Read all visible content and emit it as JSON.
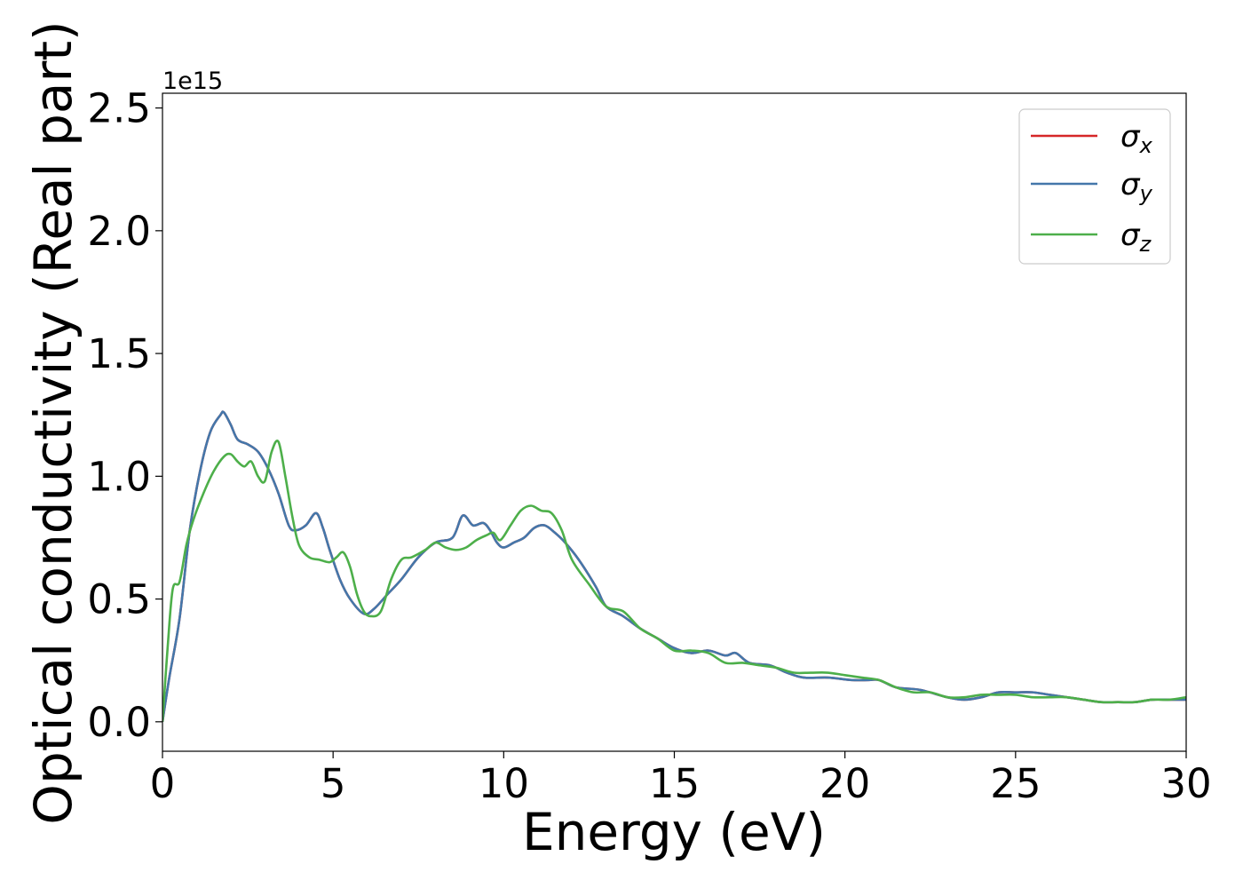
{
  "chart_data": {
    "type": "line",
    "xlabel": "Energy (eV)",
    "ylabel": "Optical conductivity (Real part)",
    "offset_label": "1e15",
    "xlim": [
      0,
      30
    ],
    "ylim": [
      -0.12,
      2.56
    ],
    "xticks": [
      0,
      5,
      10,
      15,
      20,
      25,
      30
    ],
    "xtick_labels": [
      "0",
      "5",
      "10",
      "15",
      "20",
      "25",
      "30"
    ],
    "yticks": [
      0.0,
      0.5,
      1.0,
      1.5,
      2.0,
      2.5
    ],
    "ytick_labels": [
      "0.0",
      "0.5",
      "1.0",
      "1.5",
      "2.0",
      "2.5"
    ],
    "grid": false,
    "legend_position": "top-right",
    "series": [
      {
        "name": "σ",
        "subscript": "x",
        "color": "#d62728",
        "x": [
          0,
          0.2,
          0.5,
          0.8,
          1.1,
          1.4,
          1.7,
          1.8,
          2.0,
          2.2,
          2.5,
          2.8,
          3.1,
          3.4,
          3.7,
          3.9,
          4.2,
          4.5,
          4.7,
          4.9,
          5.2,
          5.5,
          5.9,
          6.2,
          6.6,
          7.0,
          7.5,
          8.0,
          8.5,
          8.8,
          9.1,
          9.4,
          9.6,
          9.8,
          10.0,
          10.3,
          10.6,
          10.9,
          11.2,
          11.5,
          11.8,
          12.2,
          12.7,
          13.0,
          13.5,
          14.0,
          14.5,
          15.0,
          15.5,
          16.0,
          16.5,
          16.8,
          17.2,
          17.8,
          18.3,
          18.8,
          19.5,
          20.2,
          20.7,
          21.0,
          21.5,
          22.2,
          23.0,
          23.5,
          24.0,
          24.5,
          25.0,
          25.5,
          26.0,
          26.5,
          27.0,
          27.5,
          28.0,
          28.5,
          29.0,
          29.5,
          30.0
        ],
        "y": [
          0.0,
          0.18,
          0.42,
          0.78,
          1.02,
          1.18,
          1.25,
          1.26,
          1.21,
          1.15,
          1.13,
          1.1,
          1.03,
          0.93,
          0.8,
          0.78,
          0.8,
          0.85,
          0.79,
          0.7,
          0.58,
          0.5,
          0.44,
          0.46,
          0.52,
          0.58,
          0.67,
          0.73,
          0.75,
          0.84,
          0.8,
          0.81,
          0.78,
          0.73,
          0.71,
          0.73,
          0.75,
          0.79,
          0.8,
          0.77,
          0.73,
          0.66,
          0.55,
          0.47,
          0.43,
          0.38,
          0.34,
          0.3,
          0.28,
          0.29,
          0.27,
          0.28,
          0.24,
          0.23,
          0.2,
          0.18,
          0.18,
          0.17,
          0.17,
          0.17,
          0.14,
          0.13,
          0.1,
          0.09,
          0.1,
          0.12,
          0.12,
          0.12,
          0.11,
          0.1,
          0.09,
          0.08,
          0.08,
          0.08,
          0.09,
          0.09,
          0.09
        ]
      },
      {
        "name": "σ",
        "subscript": "y",
        "color": "#4477aa",
        "x": [
          0,
          0.2,
          0.5,
          0.8,
          1.1,
          1.4,
          1.7,
          1.8,
          2.0,
          2.2,
          2.5,
          2.8,
          3.1,
          3.4,
          3.7,
          3.9,
          4.2,
          4.5,
          4.7,
          4.9,
          5.2,
          5.5,
          5.9,
          6.2,
          6.6,
          7.0,
          7.5,
          8.0,
          8.5,
          8.8,
          9.1,
          9.4,
          9.6,
          9.8,
          10.0,
          10.3,
          10.6,
          10.9,
          11.2,
          11.5,
          11.8,
          12.2,
          12.7,
          13.0,
          13.5,
          14.0,
          14.5,
          15.0,
          15.5,
          16.0,
          16.5,
          16.8,
          17.2,
          17.8,
          18.3,
          18.8,
          19.5,
          20.2,
          20.7,
          21.0,
          21.5,
          22.2,
          23.0,
          23.5,
          24.0,
          24.5,
          25.0,
          25.5,
          26.0,
          26.5,
          27.0,
          27.5,
          28.0,
          28.5,
          29.0,
          29.5,
          30.0
        ],
        "y": [
          0.0,
          0.18,
          0.42,
          0.78,
          1.02,
          1.18,
          1.25,
          1.26,
          1.21,
          1.15,
          1.13,
          1.1,
          1.03,
          0.93,
          0.8,
          0.78,
          0.8,
          0.85,
          0.79,
          0.7,
          0.58,
          0.5,
          0.44,
          0.46,
          0.52,
          0.58,
          0.67,
          0.73,
          0.75,
          0.84,
          0.8,
          0.81,
          0.78,
          0.73,
          0.71,
          0.73,
          0.75,
          0.79,
          0.8,
          0.77,
          0.73,
          0.66,
          0.55,
          0.47,
          0.43,
          0.38,
          0.34,
          0.3,
          0.28,
          0.29,
          0.27,
          0.28,
          0.24,
          0.23,
          0.2,
          0.18,
          0.18,
          0.17,
          0.17,
          0.17,
          0.14,
          0.13,
          0.1,
          0.09,
          0.1,
          0.12,
          0.12,
          0.12,
          0.11,
          0.1,
          0.09,
          0.08,
          0.08,
          0.08,
          0.09,
          0.09,
          0.09
        ]
      },
      {
        "name": "σ",
        "subscript": "z",
        "color": "#4daf4a",
        "x": [
          0,
          0.15,
          0.3,
          0.5,
          0.7,
          0.9,
          1.2,
          1.5,
          1.8,
          2.0,
          2.2,
          2.4,
          2.6,
          2.8,
          3.0,
          3.2,
          3.4,
          3.6,
          3.8,
          4.0,
          4.3,
          4.6,
          4.9,
          5.1,
          5.3,
          5.5,
          5.7,
          5.9,
          6.1,
          6.4,
          6.7,
          7.0,
          7.3,
          7.7,
          8.0,
          8.3,
          8.6,
          8.9,
          9.2,
          9.5,
          9.7,
          9.9,
          10.2,
          10.5,
          10.8,
          11.1,
          11.4,
          11.7,
          12.0,
          12.5,
          13.0,
          13.5,
          14.0,
          14.5,
          15.0,
          15.5,
          16.0,
          16.5,
          17.0,
          17.5,
          18.0,
          18.5,
          19.0,
          19.5,
          20.0,
          20.5,
          21.0,
          21.5,
          22.0,
          22.5,
          23.0,
          23.5,
          24.0,
          24.5,
          25.0,
          25.5,
          26.0,
          26.5,
          27.0,
          27.5,
          28.0,
          28.5,
          29.0,
          29.5,
          30.0
        ],
        "y": [
          0.0,
          0.3,
          0.54,
          0.57,
          0.72,
          0.82,
          0.93,
          1.02,
          1.08,
          1.09,
          1.06,
          1.04,
          1.06,
          1.0,
          0.98,
          1.1,
          1.14,
          1.0,
          0.84,
          0.72,
          0.67,
          0.66,
          0.65,
          0.67,
          0.69,
          0.63,
          0.52,
          0.45,
          0.43,
          0.45,
          0.58,
          0.66,
          0.67,
          0.7,
          0.73,
          0.71,
          0.7,
          0.71,
          0.74,
          0.76,
          0.77,
          0.74,
          0.8,
          0.86,
          0.88,
          0.86,
          0.85,
          0.78,
          0.66,
          0.56,
          0.47,
          0.45,
          0.38,
          0.34,
          0.29,
          0.29,
          0.28,
          0.24,
          0.24,
          0.23,
          0.22,
          0.2,
          0.2,
          0.2,
          0.19,
          0.18,
          0.17,
          0.14,
          0.12,
          0.12,
          0.1,
          0.1,
          0.11,
          0.11,
          0.11,
          0.1,
          0.1,
          0.1,
          0.09,
          0.08,
          0.08,
          0.08,
          0.09,
          0.09,
          0.1
        ]
      }
    ]
  }
}
